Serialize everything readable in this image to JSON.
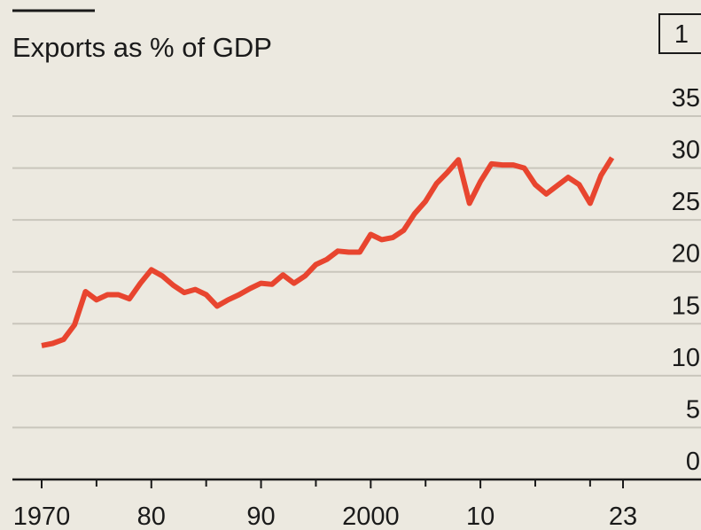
{
  "chart_data": {
    "type": "line",
    "title": "Exports as % of GDP",
    "chart_number": "1",
    "x": [
      1970,
      1971,
      1972,
      1973,
      1974,
      1975,
      1976,
      1977,
      1978,
      1979,
      1980,
      1981,
      1982,
      1983,
      1984,
      1985,
      1986,
      1987,
      1988,
      1989,
      1990,
      1991,
      1992,
      1993,
      1994,
      1995,
      1996,
      1997,
      1998,
      1999,
      2000,
      2001,
      2002,
      2003,
      2004,
      2005,
      2006,
      2007,
      2008,
      2009,
      2010,
      2011,
      2012,
      2013,
      2014,
      2015,
      2016,
      2017,
      2018,
      2019,
      2020,
      2021,
      2022
    ],
    "series": [
      {
        "color": "#e8452f",
        "values": [
          12.9,
          13.1,
          13.5,
          14.9,
          18.1,
          17.3,
          17.8,
          17.8,
          17.4,
          18.9,
          20.2,
          19.6,
          18.7,
          18.0,
          18.3,
          17.8,
          16.7,
          17.3,
          17.8,
          18.4,
          18.9,
          18.8,
          19.7,
          18.9,
          19.6,
          20.7,
          21.2,
          22.0,
          21.9,
          21.9,
          23.6,
          23.1,
          23.3,
          24.0,
          25.6,
          26.8,
          28.5,
          29.6,
          30.8,
          26.6,
          28.7,
          30.4,
          30.3,
          30.3,
          30.0,
          28.4,
          27.5,
          28.3,
          29.1,
          28.4,
          26.6,
          29.3,
          31.0
        ]
      }
    ],
    "xlim": [
      1970,
      2023
    ],
    "xticks": [
      1970,
      {
        "value": 1980,
        "label": "80"
      },
      {
        "value": 1990,
        "label": "90"
      },
      2000,
      {
        "value": 2010,
        "label": "10"
      },
      {
        "value": 2023,
        "label": "23"
      }
    ],
    "minor_xticks": [
      1975,
      1985,
      1995,
      2005,
      2015,
      2020
    ],
    "ylim": [
      0,
      35
    ],
    "yticks": [
      0,
      5,
      10,
      15,
      20,
      25,
      30,
      35
    ],
    "grid": true
  }
}
